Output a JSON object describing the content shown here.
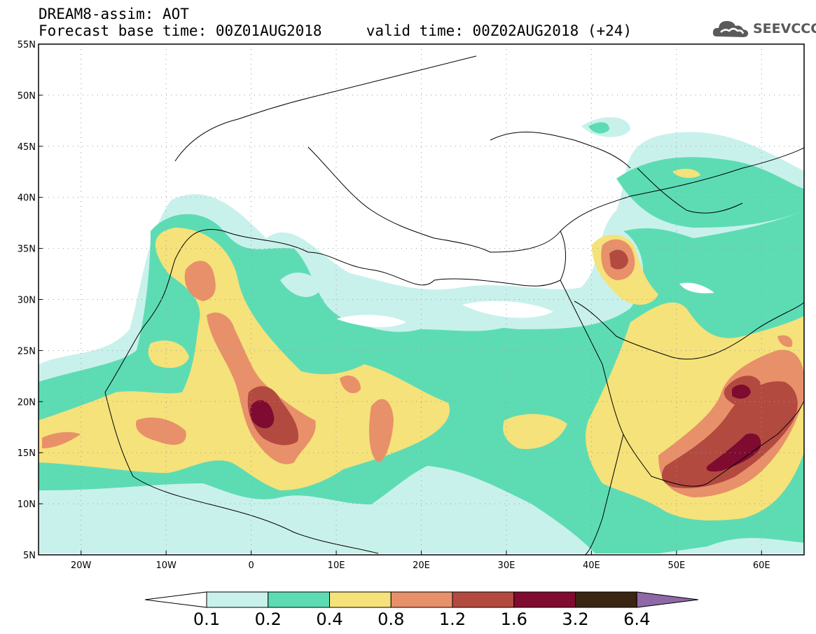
{
  "header": {
    "line1": "DREAM8-assim: AOT",
    "line2": "Forecast base time: 00Z01AUG2018     valid time: 00Z02AUG2018 (+24)"
  },
  "logo": {
    "text": "SEEVCCC",
    "icon": "cloud-icon"
  },
  "map": {
    "variable": "AOT",
    "lon_range": [
      -25,
      65
    ],
    "lat_range": [
      5,
      55
    ],
    "grid": true,
    "x_ticks": [
      "20W",
      "10W",
      "0",
      "10E",
      "20E",
      "30E",
      "40E",
      "50E",
      "60E"
    ],
    "y_ticks": [
      "55N",
      "50N",
      "45N",
      "40N",
      "35N",
      "30N",
      "25N",
      "20N",
      "15N",
      "10N",
      "5N"
    ]
  },
  "colorbar": {
    "levels": [
      "0.1",
      "0.2",
      "0.4",
      "0.8",
      "1.2",
      "1.6",
      "3.2",
      "6.4"
    ],
    "colors": [
      "#ffffff",
      "#c9f1ec",
      "#5ddcb4",
      "#f5e27a",
      "#e8906a",
      "#b34a40",
      "#7f0b30",
      "#3a2412",
      "#8f68a8"
    ]
  },
  "colors": {
    "c1": "#c9f1ec",
    "c2": "#5ddcb4",
    "c3": "#f5e27a",
    "c4": "#e8906a",
    "c5": "#b34a40",
    "c6": "#7f0b30"
  }
}
